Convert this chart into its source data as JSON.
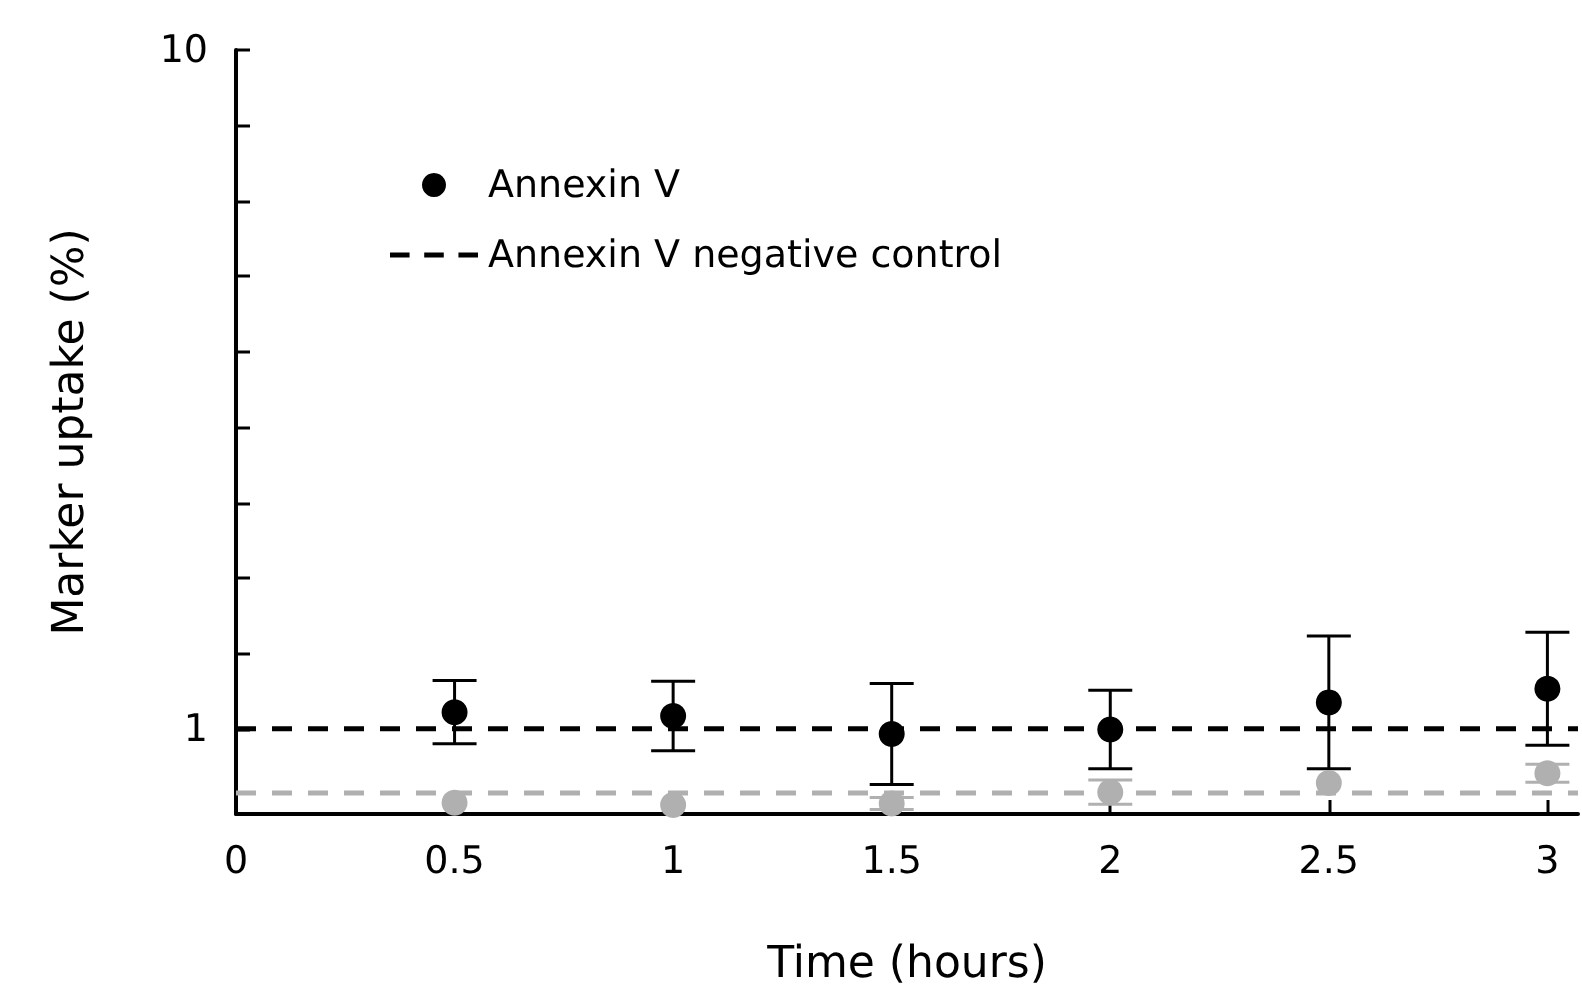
{
  "chart_data": {
    "type": "scatter",
    "xlabel": "Time (hours)",
    "ylabel": "Marker uptake (%)",
    "x": [
      0.5,
      1,
      1.5,
      2,
      2.5,
      3
    ],
    "series": [
      {
        "name": "Annexin V",
        "color": "#000000",
        "values": [
          1.22,
          1.17,
          0.93,
          0.99,
          1.35,
          1.53
        ],
        "errors": [
          0.42,
          0.46,
          0.67,
          0.52,
          0.88,
          0.75
        ]
      },
      {
        "color": "#b0b0b0",
        "values": [
          0.02,
          -0.01,
          0.01,
          0.16,
          0.28,
          0.41
        ],
        "errors": [
          null,
          null,
          0.08,
          0.16,
          null,
          0.12
        ]
      }
    ],
    "ref_lines": [
      {
        "axis": "y",
        "value": 1.0,
        "label": "Annexin V negative control",
        "color": "#000000",
        "line_style": "dashed"
      },
      {
        "axis": "y",
        "value": 0.15,
        "color": "#b0b0b0",
        "line_style": "dashed"
      }
    ],
    "xlim": [
      0,
      3.07
    ],
    "xticks": [
      0,
      0.5,
      1,
      1.5,
      2,
      2.5,
      3
    ],
    "ylim": [
      -0.13,
      10
    ],
    "yticks": [
      1,
      {
        "value": 2,
        "label": null
      },
      {
        "value": 3,
        "label": null
      },
      {
        "value": 4,
        "label": null
      },
      {
        "value": 5,
        "label": null
      },
      {
        "value": 6,
        "label": null
      },
      {
        "value": 7,
        "label": null
      },
      {
        "value": 8,
        "label": null
      },
      {
        "value": 9,
        "label": null
      },
      10
    ],
    "marker": "circle",
    "grid": false,
    "legend": "top"
  }
}
